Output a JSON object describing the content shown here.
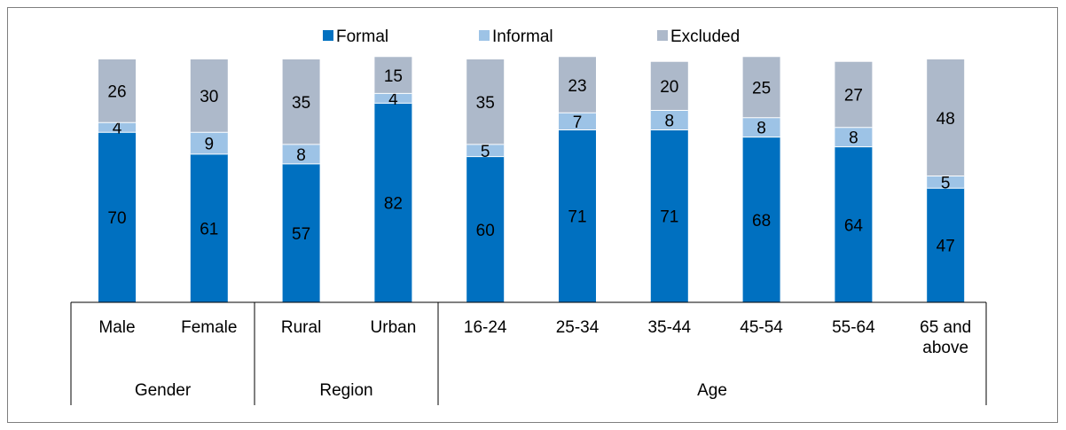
{
  "chart_data": {
    "type": "bar",
    "stacked": true,
    "normalized_percent": true,
    "categories": [
      "Male",
      "Female",
      "Rural",
      "Urban",
      "16-24",
      "25-34",
      "35-44",
      "45-54",
      "55-64",
      "65 and above"
    ],
    "category_lines": [
      [
        "Male"
      ],
      [
        "Female"
      ],
      [
        "Rural"
      ],
      [
        "Urban"
      ],
      [
        "16-24"
      ],
      [
        "25-34"
      ],
      [
        "35-44"
      ],
      [
        "45-54"
      ],
      [
        "55-64"
      ],
      [
        "65 and",
        "above"
      ]
    ],
    "groups": [
      {
        "name": "Gender",
        "span": [
          0,
          2
        ]
      },
      {
        "name": "Region",
        "span": [
          2,
          4
        ]
      },
      {
        "name": "Age",
        "span": [
          4,
          10
        ]
      }
    ],
    "series": [
      {
        "name": "Formal",
        "color": "#0070C0",
        "values": [
          70,
          61,
          57,
          82,
          60,
          71,
          71,
          68,
          64,
          47
        ]
      },
      {
        "name": "Informal",
        "color": "#9DC3E6",
        "values": [
          4,
          9,
          8,
          4,
          5,
          7,
          8,
          8,
          8,
          5
        ]
      },
      {
        "name": "Excluded",
        "color": "#ADB9CA",
        "values": [
          26,
          30,
          35,
          15,
          35,
          23,
          20,
          25,
          27,
          48
        ]
      }
    ],
    "legend_position": "top",
    "grid": false
  }
}
